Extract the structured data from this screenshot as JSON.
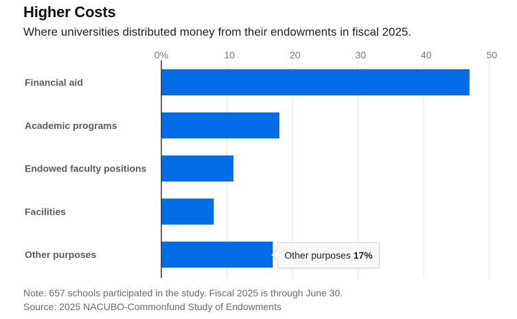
{
  "chart_data": {
    "type": "bar",
    "orientation": "horizontal",
    "title": "Higher Costs",
    "subtitle": "Where universities distributed money from their endowments in fiscal 2025.",
    "categories": [
      "Financial aid",
      "Academic programs",
      "Endowed faculty positions",
      "Facilities",
      "Other purposes"
    ],
    "values": [
      47,
      18,
      11,
      8,
      17
    ],
    "unit": "%",
    "xlim": [
      0,
      50
    ],
    "xticks": [
      0,
      10,
      20,
      30,
      40,
      50
    ],
    "xtick_labels": [
      "0%",
      "10",
      "20",
      "30",
      "40",
      "50"
    ],
    "xaxis_position": "top",
    "grid": true,
    "bar_color": "#006ce5",
    "tooltip": {
      "category": "Other purposes",
      "value_label": "17%"
    },
    "note": "Note: 657 schools participated in the study. Fiscal 2025 is through June 30.",
    "source": "Source: 2025 NACUBO-Commonfund Study of Endowments"
  }
}
